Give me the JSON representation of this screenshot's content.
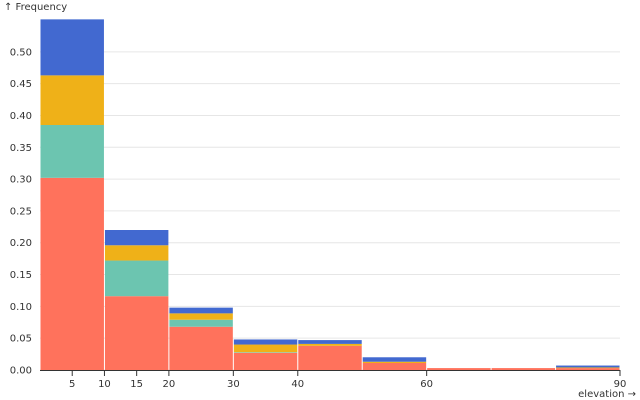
{
  "chart_data": {
    "type": "bar",
    "variant": "stacked-histogram",
    "title": "",
    "xlabel": "elevation →",
    "ylabel": "↑ Frequency",
    "xlim": [
      0,
      90
    ],
    "ylim": [
      0,
      0.55
    ],
    "x_ticks": [
      5,
      10,
      15,
      20,
      30,
      40,
      60,
      90
    ],
    "y_ticks": [
      "0.00",
      "0.05",
      "0.10",
      "0.15",
      "0.20",
      "0.25",
      "0.30",
      "0.35",
      "0.40",
      "0.45",
      "0.50"
    ],
    "y_tick_values": [
      0,
      0.05,
      0.1,
      0.15,
      0.2,
      0.25,
      0.3,
      0.35,
      0.4,
      0.45,
      0.5
    ],
    "grid": true,
    "bins": [
      {
        "x0": 0,
        "x1": 10,
        "values": [
          0.302,
          0.083,
          0.078,
          0.088
        ]
      },
      {
        "x0": 10,
        "x1": 20,
        "values": [
          0.116,
          0.056,
          0.024,
          0.024
        ]
      },
      {
        "x0": 20,
        "x1": 30,
        "values": [
          0.068,
          0.011,
          0.01,
          0.009
        ]
      },
      {
        "x0": 30,
        "x1": 40,
        "values": [
          0.027,
          0.001,
          0.012,
          0.008
        ]
      },
      {
        "x0": 40,
        "x1": 50,
        "values": [
          0.038,
          0.0,
          0.003,
          0.006
        ]
      },
      {
        "x0": 50,
        "x1": 60,
        "values": [
          0.011,
          0.0,
          0.002,
          0.007
        ]
      },
      {
        "x0": 60,
        "x1": 70,
        "values": [
          0.003,
          0.0,
          0.0,
          0.0
        ]
      },
      {
        "x0": 70,
        "x1": 80,
        "values": [
          0.003,
          0.0,
          0.0,
          0.0
        ]
      },
      {
        "x0": 80,
        "x1": 90,
        "values": [
          0.003,
          0.0,
          0.001,
          0.003
        ]
      }
    ],
    "series_colors": [
      "#ff725c",
      "#6cc5b0",
      "#efb118",
      "#4269d0"
    ]
  }
}
